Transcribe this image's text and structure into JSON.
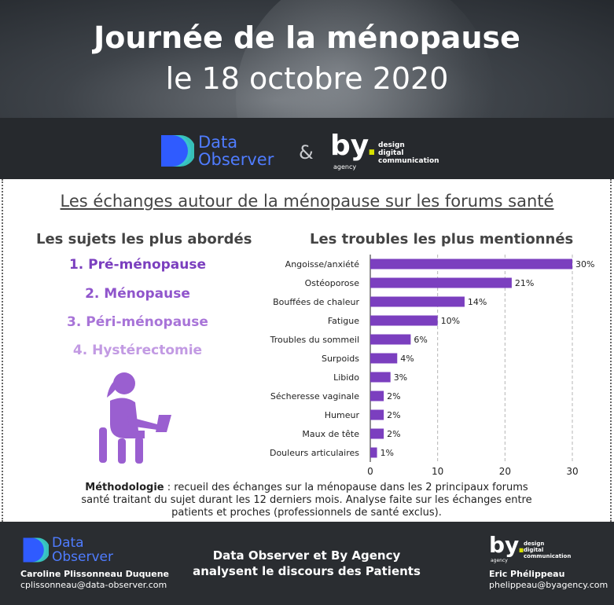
{
  "header": {
    "title": "Journée de la ménopause",
    "date": "le 18 octobre 2020"
  },
  "logos": {
    "data_observer_line1": "Data",
    "data_observer_line2": "Observer",
    "ampersand": "&",
    "by": "by",
    "by_dot": ".",
    "by_agency": "agency",
    "by_sub_1": "design",
    "by_sub_2": "digital",
    "by_sub_3": "communication"
  },
  "subtitle": "Les échanges autour de la ménopause sur les forums santé",
  "topics": {
    "title": "Les sujets les plus abordés",
    "items": [
      "1. Pré-ménopause",
      "2. Ménopause",
      "3. Péri-ménopause",
      "4. Hystérectomie"
    ],
    "colors": [
      "#7b3fbf",
      "#9055cc",
      "#a874d8",
      "#c29ae3"
    ]
  },
  "chart_title": "Les troubles les plus mentionnés",
  "chart_data": {
    "type": "bar",
    "orientation": "horizontal",
    "categories": [
      "Angoisse/anxiété",
      "Ostéoporose",
      "Bouffées de chaleur",
      "Fatigue",
      "Troubles du sommeil",
      "Surpoids",
      "Libido",
      "Sécheresse vaginale",
      "Humeur",
      "Maux de tête",
      "Douleurs articulaires"
    ],
    "values": [
      30,
      21,
      14,
      10,
      6,
      4,
      3,
      2,
      2,
      2,
      1
    ],
    "data_labels": [
      "30%",
      "21%",
      "14%",
      "10%",
      "6%",
      "4%",
      "3%",
      "2%",
      "2%",
      "2%",
      "1%"
    ],
    "xlim": [
      0,
      30
    ],
    "xticks": [
      0,
      10,
      20,
      30
    ],
    "grid": "vertical dashed",
    "bar_color": "#7b3fbf"
  },
  "methodology": {
    "label": "Méthodologie",
    "text": " : recueil des échanges sur la ménopause dans les 2 principaux forums santé traitant du sujet durant les 12 derniers mois. Analyse faite sur les échanges entre patients et proches (professionnels de santé exclus)."
  },
  "footer": {
    "left_name": "Caroline Plissonneau Duquene",
    "left_email": "cplissonneau@data-observer.com",
    "center_line1": "Data Observer et By Agency",
    "center_line2": "analysent le discours des Patients",
    "right_name": "Eric Phélippeau",
    "right_email": "phelippeau@byagency.com"
  }
}
